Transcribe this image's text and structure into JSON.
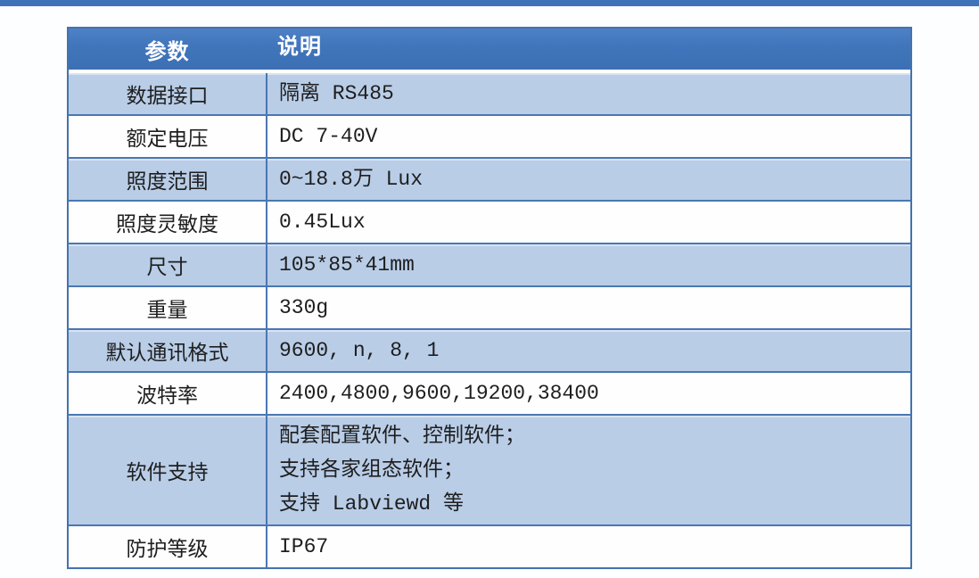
{
  "page": {
    "accent_bar_color": "#3e73b9",
    "background_color": "#fdfeff"
  },
  "table": {
    "colors": {
      "header_bg": "#4176bc",
      "header_text": "#ffffff",
      "row_alt_bg": "#b9cde7",
      "row_bg": "#fefefe",
      "border": "#4a77b2",
      "body_text": "#1e1e1e"
    },
    "headers": {
      "param": "参数",
      "desc": "说明"
    },
    "rows": [
      {
        "param": "数据接口",
        "desc": "隔离 RS485"
      },
      {
        "param": "额定电压",
        "desc": "DC 7-40V"
      },
      {
        "param": "照度范围",
        "desc": "0~18.8万 Lux"
      },
      {
        "param": "照度灵敏度",
        "desc": "0.45Lux"
      },
      {
        "param": "尺寸",
        "desc": "105*85*41mm"
      },
      {
        "param": "重量",
        "desc": "330g"
      },
      {
        "param": "默认通讯格式",
        "desc": "9600, n, 8, 1"
      },
      {
        "param": "波特率",
        "desc": "2400,4800,9600,19200,38400"
      },
      {
        "param": "软件支持",
        "desc": "配套配置软件、控制软件；\n支持各家组态软件；\n支持 Labviewd 等"
      },
      {
        "param": "防护等级",
        "desc": "IP67"
      }
    ]
  }
}
